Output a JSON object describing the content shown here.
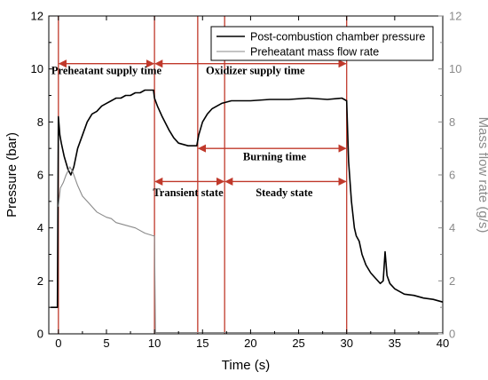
{
  "chart_data": {
    "type": "line",
    "xlabel": "Time (s)",
    "ylabel": "Pressure (bar)",
    "y2label": "Mass flow rate (g/s)",
    "xlim": [
      -1,
      40
    ],
    "ylim": [
      0,
      12
    ],
    "y2lim": [
      0,
      12
    ],
    "xticks": [
      0,
      5,
      10,
      15,
      20,
      25,
      30,
      35,
      40
    ],
    "yticks": [
      0,
      2,
      4,
      6,
      8,
      10,
      12
    ],
    "y2ticks": [
      0,
      2,
      4,
      6,
      8,
      10,
      12
    ],
    "legend_position": "top-right",
    "colors": {
      "pressure": "#000000",
      "massflow": "#8a8a8a",
      "annotation": "#c0392b"
    },
    "series": [
      {
        "name": "Post-combustion chamber pressure",
        "axis": "left",
        "x": [
          -0.8,
          -0.1,
          0.0,
          0.15,
          0.3,
          0.6,
          1.0,
          1.3,
          1.6,
          2.0,
          2.5,
          3.0,
          3.5,
          4.0,
          4.5,
          5.0,
          5.5,
          6.0,
          6.5,
          7.0,
          7.5,
          8.0,
          8.5,
          9.0,
          9.5,
          9.9,
          10.0,
          10.3,
          10.8,
          11.5,
          12.0,
          12.5,
          13.0,
          13.5,
          14.0,
          14.4,
          14.6,
          15.0,
          15.5,
          16.0,
          17.0,
          18.0,
          20.0,
          22.0,
          24.0,
          26.0,
          28.0,
          29.5,
          30.0,
          30.2,
          30.5,
          30.8,
          31.0,
          31.3,
          31.6,
          32.0,
          32.5,
          33.0,
          33.5,
          33.8,
          34.0,
          34.2,
          34.5,
          35.0,
          35.5,
          36.0,
          37.0,
          38.0,
          39.0,
          39.5,
          40.0
        ],
        "values": [
          1.0,
          1.0,
          8.2,
          7.5,
          7.2,
          6.7,
          6.2,
          6.0,
          6.3,
          7.0,
          7.5,
          8.0,
          8.3,
          8.4,
          8.6,
          8.7,
          8.8,
          8.9,
          8.9,
          9.0,
          9.0,
          9.1,
          9.1,
          9.2,
          9.2,
          9.2,
          8.9,
          8.6,
          8.2,
          7.7,
          7.4,
          7.2,
          7.15,
          7.1,
          7.1,
          7.1,
          7.5,
          8.0,
          8.3,
          8.5,
          8.7,
          8.8,
          8.8,
          8.85,
          8.85,
          8.9,
          8.85,
          8.9,
          8.8,
          6.5,
          5.0,
          4.0,
          3.7,
          3.5,
          3.0,
          2.6,
          2.3,
          2.1,
          1.9,
          2.0,
          3.1,
          2.2,
          1.9,
          1.7,
          1.6,
          1.5,
          1.45,
          1.35,
          1.3,
          1.25,
          1.2
        ]
      },
      {
        "name": "Preheatant mass flow rate",
        "axis": "right",
        "x": [
          0.0,
          0.2,
          0.5,
          0.8,
          1.2,
          1.5,
          2.0,
          2.5,
          3.0,
          3.5,
          4.0,
          4.5,
          5.0,
          5.5,
          6.0,
          7.0,
          8.0,
          9.0,
          9.9,
          10.0,
          10.1,
          40.0
        ],
        "values": [
          4.8,
          5.5,
          5.7,
          6.0,
          6.3,
          6.1,
          5.6,
          5.2,
          5.0,
          4.8,
          4.6,
          4.5,
          4.4,
          4.35,
          4.2,
          4.1,
          4.0,
          3.8,
          3.7,
          3.7,
          0.05,
          0.05
        ]
      }
    ],
    "annotations": {
      "vertical_lines_x": [
        0,
        10,
        14.5,
        17.3,
        30
      ],
      "texts": [
        {
          "text": "Preheatant supply time",
          "x": 5,
          "y": 9.8,
          "arrow": [
            0,
            10
          ],
          "arrow_y": 10.2
        },
        {
          "text": "Oxidizer supply time",
          "x": 20.5,
          "y": 9.8,
          "arrow": [
            10,
            30
          ],
          "arrow_y": 10.2
        },
        {
          "text": "Burning time",
          "x": 22.5,
          "y": 6.55,
          "arrow": [
            14.5,
            30
          ],
          "arrow_y": 7.0
        },
        {
          "text": "Transient state",
          "x": 13.5,
          "y": 5.2,
          "arrow": [
            10,
            17.3
          ],
          "arrow_y": 5.75
        },
        {
          "text": "Steady state",
          "x": 23.5,
          "y": 5.2,
          "arrow": [
            17.3,
            30
          ],
          "arrow_y": 5.75
        }
      ]
    }
  }
}
